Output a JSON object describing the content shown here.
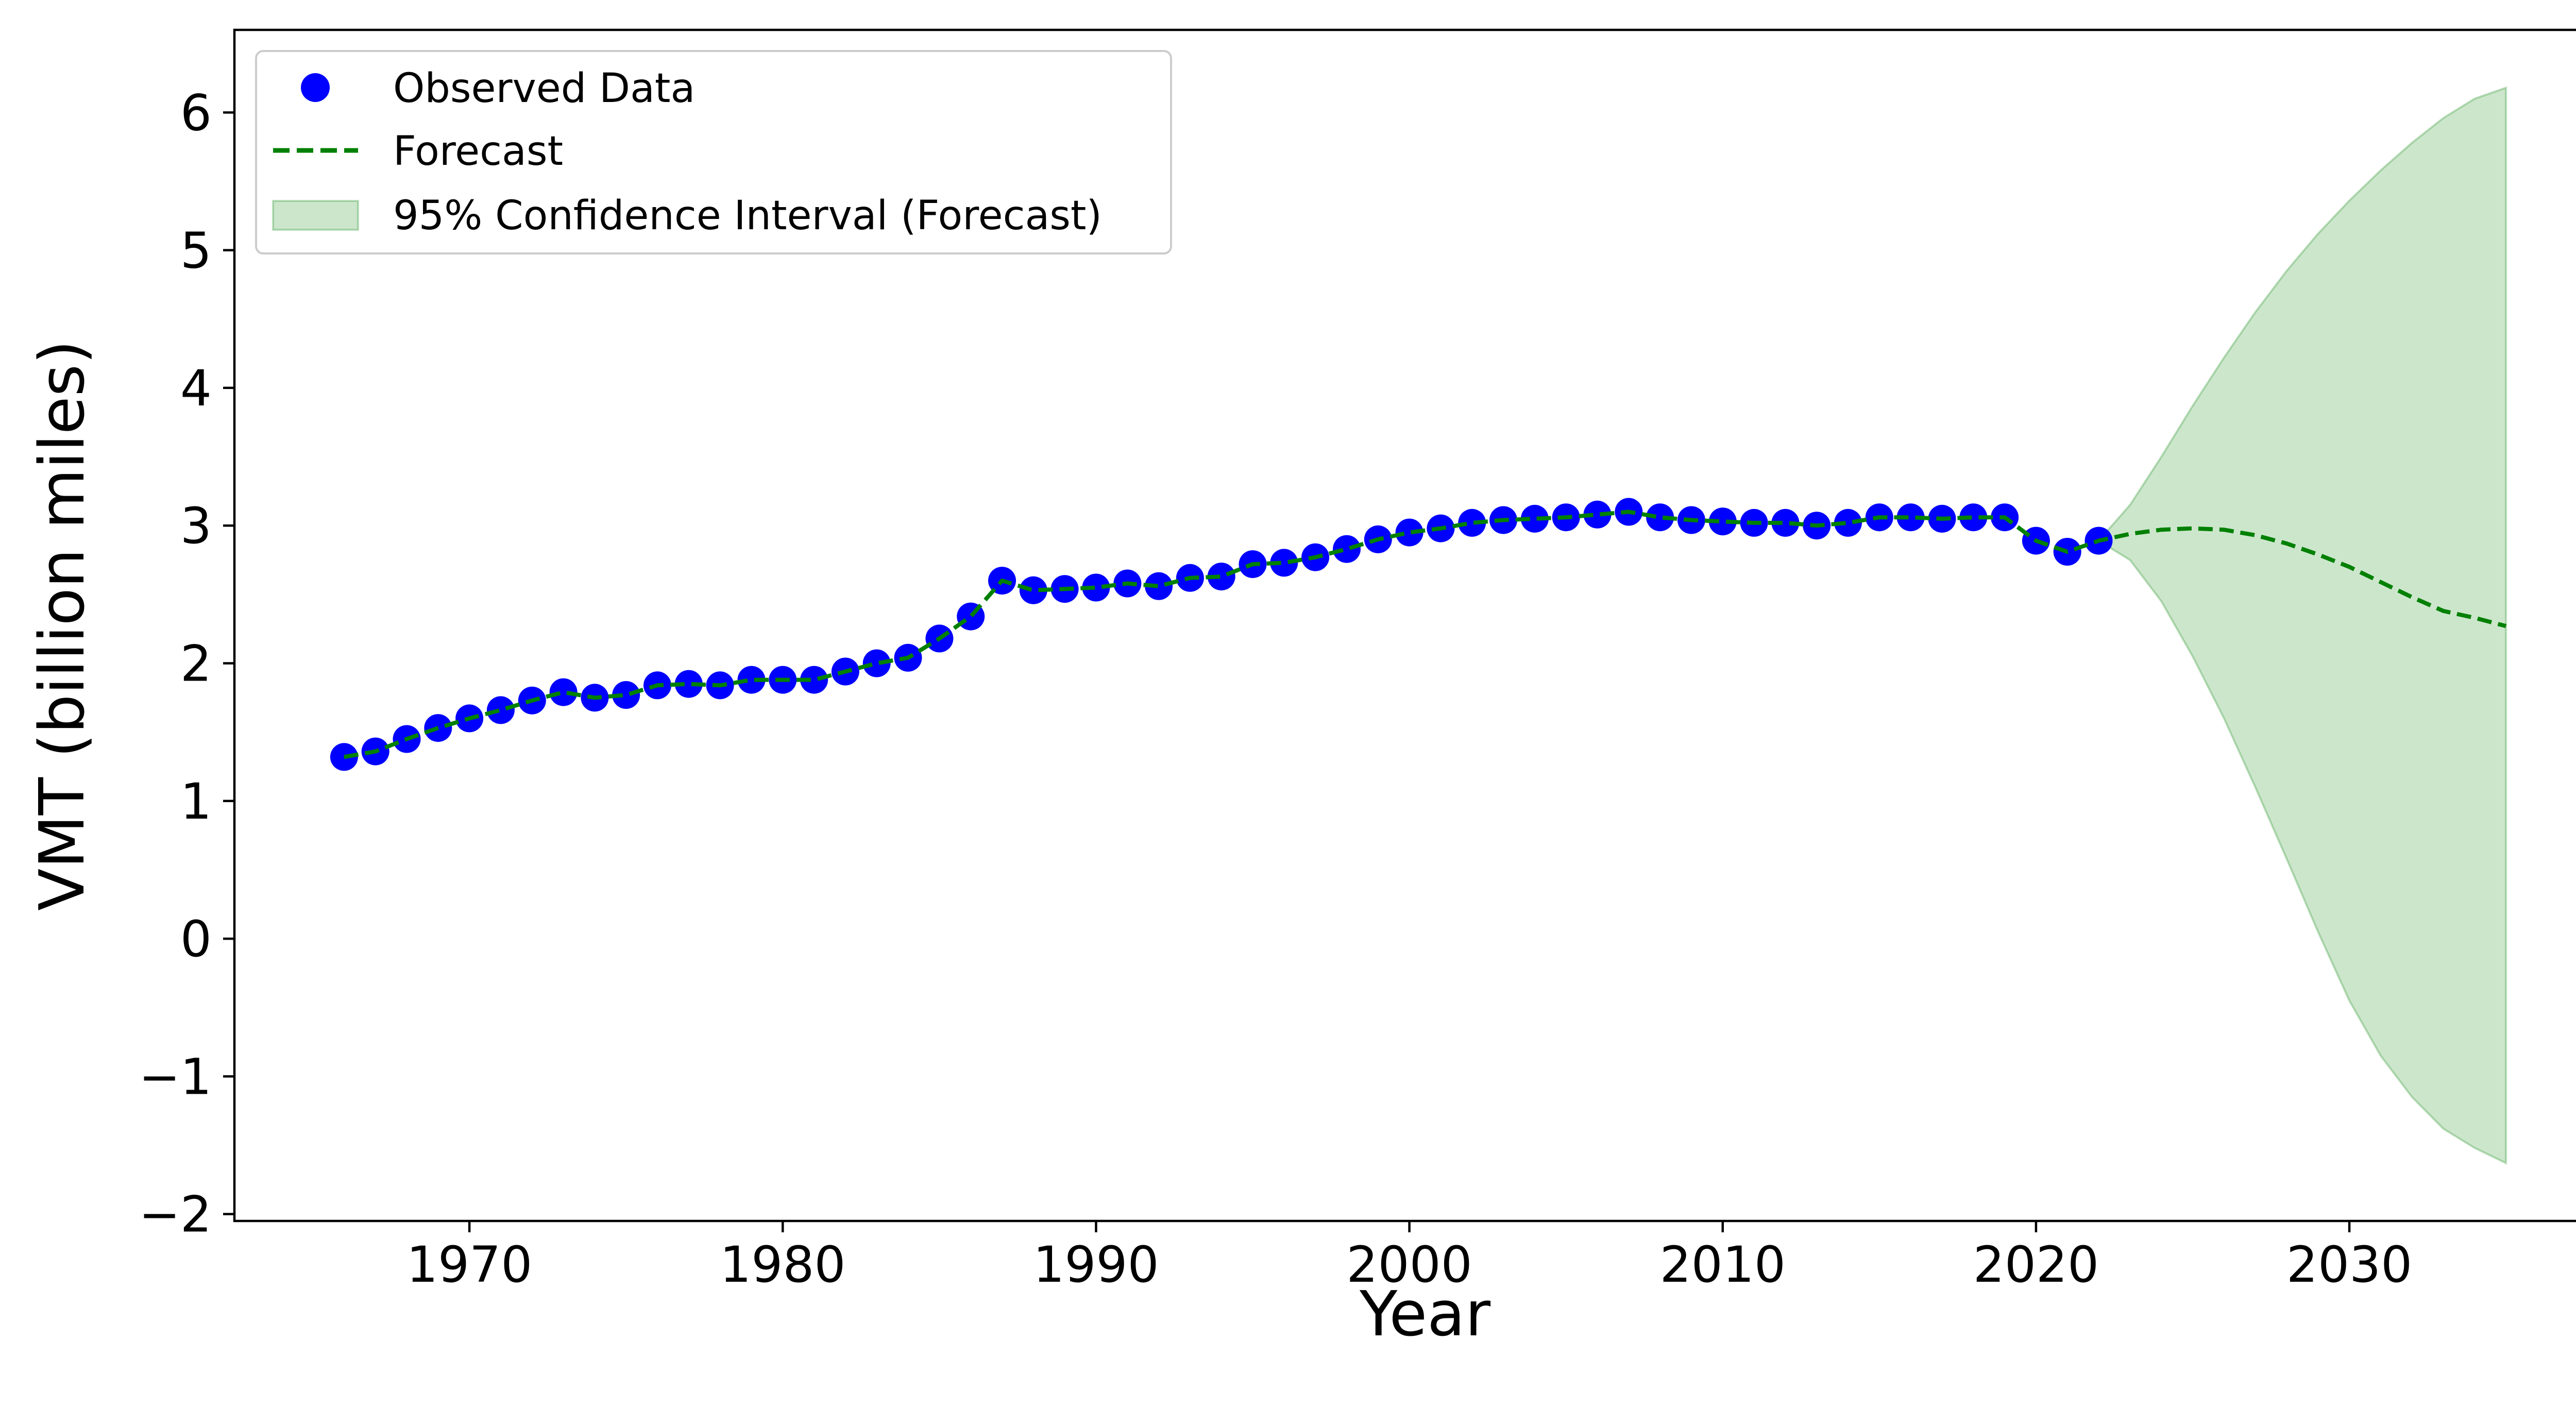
{
  "chart_data": {
    "type": "line",
    "xlabel": "Year",
    "ylabel": "VMT (billion miles)",
    "xlim": [
      1962.5,
      2038.5
    ],
    "ylim": [
      -2.05,
      6.6
    ],
    "x_ticks": [
      1970,
      1980,
      1990,
      2000,
      2010,
      2020,
      2030
    ],
    "x_tick_labels": [
      "1970",
      "1980",
      "1990",
      "2000",
      "2010",
      "2020",
      "2030"
    ],
    "y_ticks": [
      -2,
      -1,
      0,
      1,
      2,
      3,
      4,
      5,
      6
    ],
    "y_tick_labels": [
      "−2",
      "−1",
      "0",
      "1",
      "2",
      "3",
      "4",
      "5",
      "6"
    ],
    "grid": false,
    "legend_position": "top-left",
    "colors": {
      "observed": "#0000ff",
      "forecast": "#008000",
      "ci_fill": "#008000",
      "axes": "#000000"
    },
    "series": [
      {
        "name": "Observed Data",
        "kind": "scatter",
        "x": [
          1966,
          1967,
          1968,
          1969,
          1970,
          1971,
          1972,
          1973,
          1974,
          1975,
          1976,
          1977,
          1978,
          1979,
          1980,
          1981,
          1982,
          1983,
          1984,
          1985,
          1986,
          1987,
          1988,
          1989,
          1990,
          1991,
          1992,
          1993,
          1994,
          1995,
          1996,
          1997,
          1998,
          1999,
          2000,
          2001,
          2002,
          2003,
          2004,
          2005,
          2006,
          2007,
          2008,
          2009,
          2010,
          2011,
          2012,
          2013,
          2014,
          2015,
          2016,
          2017,
          2018,
          2019,
          2020,
          2021,
          2022
        ],
        "y": [
          1.32,
          1.36,
          1.45,
          1.53,
          1.6,
          1.66,
          1.73,
          1.79,
          1.75,
          1.77,
          1.84,
          1.85,
          1.84,
          1.88,
          1.88,
          1.88,
          1.94,
          2.0,
          2.04,
          2.18,
          2.34,
          2.6,
          2.53,
          2.54,
          2.55,
          2.58,
          2.56,
          2.62,
          2.63,
          2.72,
          2.73,
          2.77,
          2.83,
          2.9,
          2.95,
          2.98,
          3.02,
          3.04,
          3.05,
          3.06,
          3.08,
          3.1,
          3.06,
          3.04,
          3.03,
          3.02,
          3.02,
          3.0,
          3.02,
          3.06,
          3.06,
          3.05,
          3.06,
          3.06,
          2.89,
          2.81,
          2.89
        ]
      },
      {
        "name": "Forecast",
        "kind": "dashed-line",
        "x": [
          1966,
          1967,
          1968,
          1969,
          1970,
          1971,
          1972,
          1973,
          1974,
          1975,
          1976,
          1977,
          1978,
          1979,
          1980,
          1981,
          1982,
          1983,
          1984,
          1985,
          1986,
          1987,
          1988,
          1989,
          1990,
          1991,
          1992,
          1993,
          1994,
          1995,
          1996,
          1997,
          1998,
          1999,
          2000,
          2001,
          2002,
          2003,
          2004,
          2005,
          2006,
          2007,
          2008,
          2009,
          2010,
          2011,
          2012,
          2013,
          2014,
          2015,
          2016,
          2017,
          2018,
          2019,
          2020,
          2021,
          2022,
          2023,
          2024,
          2025,
          2026,
          2027,
          2028,
          2029,
          2030,
          2031,
          2032,
          2033,
          2034,
          2035
        ],
        "y": [
          1.32,
          1.36,
          1.45,
          1.53,
          1.6,
          1.66,
          1.73,
          1.79,
          1.75,
          1.77,
          1.84,
          1.85,
          1.84,
          1.88,
          1.88,
          1.88,
          1.94,
          2.0,
          2.04,
          2.18,
          2.34,
          2.6,
          2.53,
          2.54,
          2.55,
          2.58,
          2.56,
          2.62,
          2.63,
          2.72,
          2.73,
          2.77,
          2.83,
          2.9,
          2.95,
          2.98,
          3.02,
          3.04,
          3.05,
          3.06,
          3.08,
          3.1,
          3.06,
          3.04,
          3.03,
          3.02,
          3.02,
          3.0,
          3.02,
          3.06,
          3.06,
          3.05,
          3.06,
          3.06,
          2.89,
          2.81,
          2.89,
          2.94,
          2.97,
          2.98,
          2.97,
          2.93,
          2.87,
          2.79,
          2.7,
          2.59,
          2.48,
          2.38,
          2.33,
          2.27
        ]
      },
      {
        "name": "95% Confidence Interval (Forecast)",
        "kind": "band",
        "x": [
          2022,
          2023,
          2024,
          2025,
          2026,
          2027,
          2028,
          2029,
          2030,
          2031,
          2032,
          2033,
          2034,
          2035
        ],
        "lower": [
          2.89,
          2.75,
          2.45,
          2.05,
          1.6,
          1.1,
          0.58,
          0.05,
          -0.45,
          -0.85,
          -1.15,
          -1.38,
          -1.52,
          -1.63
        ],
        "upper": [
          2.89,
          3.15,
          3.5,
          3.87,
          4.22,
          4.55,
          4.85,
          5.12,
          5.36,
          5.58,
          5.78,
          5.96,
          6.1,
          6.18
        ]
      }
    ]
  }
}
